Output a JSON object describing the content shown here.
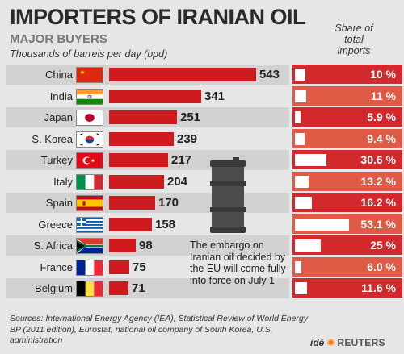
{
  "header": {
    "title": "IMPORTERS OF IRANIAN OIL",
    "subtitle": "MAJOR BUYERS",
    "unit_label": "Thousands of barrels per day (bpd)",
    "share_label_lines": [
      "Share of",
      "total",
      "imports"
    ]
  },
  "colors": {
    "bar": "#cf1b1f",
    "share_row_a": "#d3282c",
    "share_row_b": "#e05a45",
    "background": "#e6e6e6",
    "stripe": "#d2d2d2"
  },
  "chart_data": {
    "type": "bar",
    "orientation": "horizontal",
    "title": "IMPORTERS OF IRANIAN OIL",
    "subtitle": "MAJOR BUYERS",
    "categories": [
      "China",
      "India",
      "Japan",
      "S. Korea",
      "Turkey",
      "Italy",
      "Spain",
      "Greece",
      "S. Africa",
      "France",
      "Belgium"
    ],
    "flags": [
      "china-flag-icon",
      "india-flag-icon",
      "japan-flag-icon",
      "south-korea-flag-icon",
      "turkey-flag-icon",
      "italy-flag-icon",
      "spain-flag-icon",
      "greece-flag-icon",
      "south-africa-flag-icon",
      "france-flag-icon",
      "belgium-flag-icon"
    ],
    "series": [
      {
        "name": "Thousands of barrels per day (bpd)",
        "values": [
          543,
          341,
          251,
          239,
          217,
          204,
          170,
          158,
          98,
          75,
          71
        ]
      },
      {
        "name": "Share of total imports",
        "values": [
          10,
          11,
          5.9,
          9.4,
          30.6,
          13.2,
          16.2,
          53.1,
          25,
          6.0,
          11.6
        ],
        "labels": [
          "10 %",
          "11 %",
          "5.9 %",
          "9.4 %",
          "30.6 %",
          "13.2 %",
          "16.2 %",
          "53.1 %",
          "25 %",
          "6.0 %",
          "11.6 %"
        ]
      }
    ],
    "xlim": [
      0,
      543
    ]
  },
  "annotation": {
    "text": "The embargo on Iranian oil decided by the EU will come fully into force on July 1",
    "icon": "oil-barrel-icon"
  },
  "footer": {
    "sources": "Sources:  International Energy Agency (IEA), Statistical Review of World Energy BP (2011 edition), Eurostat, national oil company of South Korea, U.S. administration",
    "credit_ide": "idé",
    "credit_reuters": "REUTERS"
  }
}
